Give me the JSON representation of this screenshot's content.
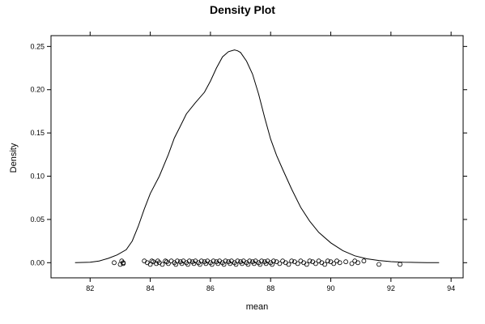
{
  "chart_data": {
    "type": "line",
    "title": "Density Plot",
    "xlabel": "mean",
    "ylabel": "Density",
    "xlim": [
      80.7,
      94.4
    ],
    "ylim": [
      -0.0175,
      0.2625
    ],
    "xticks": [
      82,
      84,
      86,
      88,
      90,
      92,
      94
    ],
    "yticks": [
      0.0,
      0.05,
      0.1,
      0.15,
      0.2,
      0.25
    ],
    "xtick_labels": [
      "82",
      "84",
      "86",
      "88",
      "90",
      "92",
      "94"
    ],
    "ytick_labels": [
      "0.00",
      "0.05",
      "0.10",
      "0.15",
      "0.20",
      "0.25"
    ],
    "grid": false,
    "legend": "none",
    "series": [
      {
        "type": "line",
        "x": [
          81.5,
          82.0,
          82.3,
          82.6,
          82.9,
          83.2,
          83.4,
          83.6,
          83.8,
          84.0,
          84.3,
          84.6,
          84.8,
          85.0,
          85.2,
          85.5,
          85.8,
          86.0,
          86.2,
          86.4,
          86.6,
          86.8,
          86.9,
          87.0,
          87.2,
          87.4,
          87.6,
          87.8,
          88.0,
          88.2,
          88.4,
          88.7,
          89.0,
          89.3,
          89.6,
          90.0,
          90.4,
          90.8,
          91.2,
          91.6,
          92.0,
          92.4,
          92.8,
          93.2,
          93.6
        ],
        "y": [
          0.0,
          0.0005,
          0.002,
          0.005,
          0.009,
          0.015,
          0.025,
          0.042,
          0.062,
          0.08,
          0.1,
          0.125,
          0.144,
          0.158,
          0.172,
          0.185,
          0.197,
          0.21,
          0.225,
          0.238,
          0.244,
          0.246,
          0.245,
          0.243,
          0.233,
          0.218,
          0.195,
          0.168,
          0.143,
          0.124,
          0.108,
          0.085,
          0.064,
          0.048,
          0.035,
          0.023,
          0.014,
          0.008,
          0.0045,
          0.0025,
          0.0012,
          0.0006,
          0.0003,
          0.0001,
          0.0
        ]
      },
      {
        "type": "scatter",
        "x": [
          82.8,
          83.0,
          83.05,
          83.1,
          83.1,
          83.8,
          83.9,
          84.0,
          84.05,
          84.1,
          84.2,
          84.25,
          84.3,
          84.4,
          84.5,
          84.55,
          84.6,
          84.7,
          84.8,
          84.85,
          84.9,
          85.0,
          85.05,
          85.1,
          85.2,
          85.25,
          85.3,
          85.4,
          85.45,
          85.5,
          85.6,
          85.65,
          85.7,
          85.8,
          85.85,
          85.9,
          86.0,
          86.05,
          86.1,
          86.2,
          86.25,
          86.3,
          86.4,
          86.45,
          86.5,
          86.6,
          86.65,
          86.7,
          86.8,
          86.85,
          86.9,
          87.0,
          87.05,
          87.1,
          87.2,
          87.25,
          87.3,
          87.4,
          87.45,
          87.5,
          87.6,
          87.65,
          87.7,
          87.8,
          87.85,
          87.9,
          88.0,
          88.05,
          88.1,
          88.2,
          88.3,
          88.4,
          88.5,
          88.6,
          88.7,
          88.8,
          88.9,
          89.0,
          89.1,
          89.2,
          89.3,
          89.4,
          89.5,
          89.6,
          89.7,
          89.8,
          89.9,
          90.0,
          90.1,
          90.2,
          90.3,
          90.5,
          90.7,
          90.8,
          90.9,
          91.1,
          91.6,
          92.3
        ],
        "y": [
          0.0,
          -0.002,
          0.002,
          -0.001,
          0.0,
          0.002,
          0.0,
          -0.002,
          0.002,
          0.001,
          -0.001,
          0.002,
          0.0,
          -0.002,
          0.002,
          0.001,
          -0.001,
          0.002,
          0.0,
          -0.002,
          0.002,
          0.001,
          -0.001,
          0.002,
          0.0,
          -0.002,
          0.002,
          0.001,
          -0.001,
          0.002,
          0.0,
          -0.002,
          0.002,
          0.001,
          -0.001,
          0.002,
          0.0,
          -0.002,
          0.002,
          0.001,
          -0.001,
          0.002,
          0.0,
          -0.002,
          0.002,
          0.001,
          -0.001,
          0.002,
          0.0,
          -0.002,
          0.002,
          0.001,
          -0.001,
          0.002,
          0.0,
          -0.002,
          0.002,
          0.001,
          -0.001,
          0.002,
          0.0,
          -0.002,
          0.002,
          0.001,
          -0.001,
          0.002,
          0.0,
          -0.002,
          0.002,
          0.001,
          -0.001,
          0.002,
          0.0,
          -0.002,
          0.002,
          0.001,
          -0.001,
          0.002,
          0.0,
          -0.002,
          0.002,
          0.001,
          -0.001,
          0.002,
          0.0,
          -0.002,
          0.002,
          0.001,
          -0.001,
          0.002,
          0.0,
          0.001,
          -0.001,
          0.002,
          0.0,
          0.002,
          -0.002,
          -0.002
        ]
      }
    ]
  }
}
